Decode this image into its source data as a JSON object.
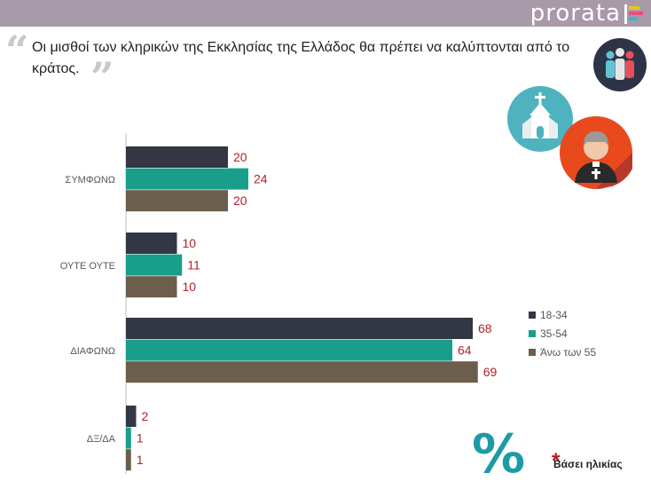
{
  "brand": "prorata",
  "question": "Οι μισθοί των κληρικών της Εκκλησίας της Ελλάδος θα πρέπει να καλύπτονται από το κράτος.",
  "footnote": "Βάσει ηλικίας",
  "icons": {
    "people": "people-group-icon",
    "church": "church-icon",
    "priest": "priest-icon",
    "percent": "percent-icon"
  },
  "chart_data": {
    "type": "bar",
    "orientation": "horizontal",
    "categories": [
      "ΣΥΜΦΩΝΩ",
      "ΟΥΤΕ ΟΥΤΕ",
      "ΔΙΑΦΩΝΩ",
      "ΔΞ/ΔΑ"
    ],
    "series": [
      {
        "name": "18-34",
        "color": "#333744",
        "values": [
          20,
          10,
          68,
          2
        ]
      },
      {
        "name": "35-54",
        "color": "#1a9e8c",
        "values": [
          24,
          11,
          64,
          1
        ]
      },
      {
        "name": "Άνω των 55",
        "color": "#6b5e4c",
        "values": [
          20,
          10,
          69,
          1
        ]
      }
    ],
    "value_label_color": "#b3202a",
    "legend_position": "right",
    "grid": false
  }
}
